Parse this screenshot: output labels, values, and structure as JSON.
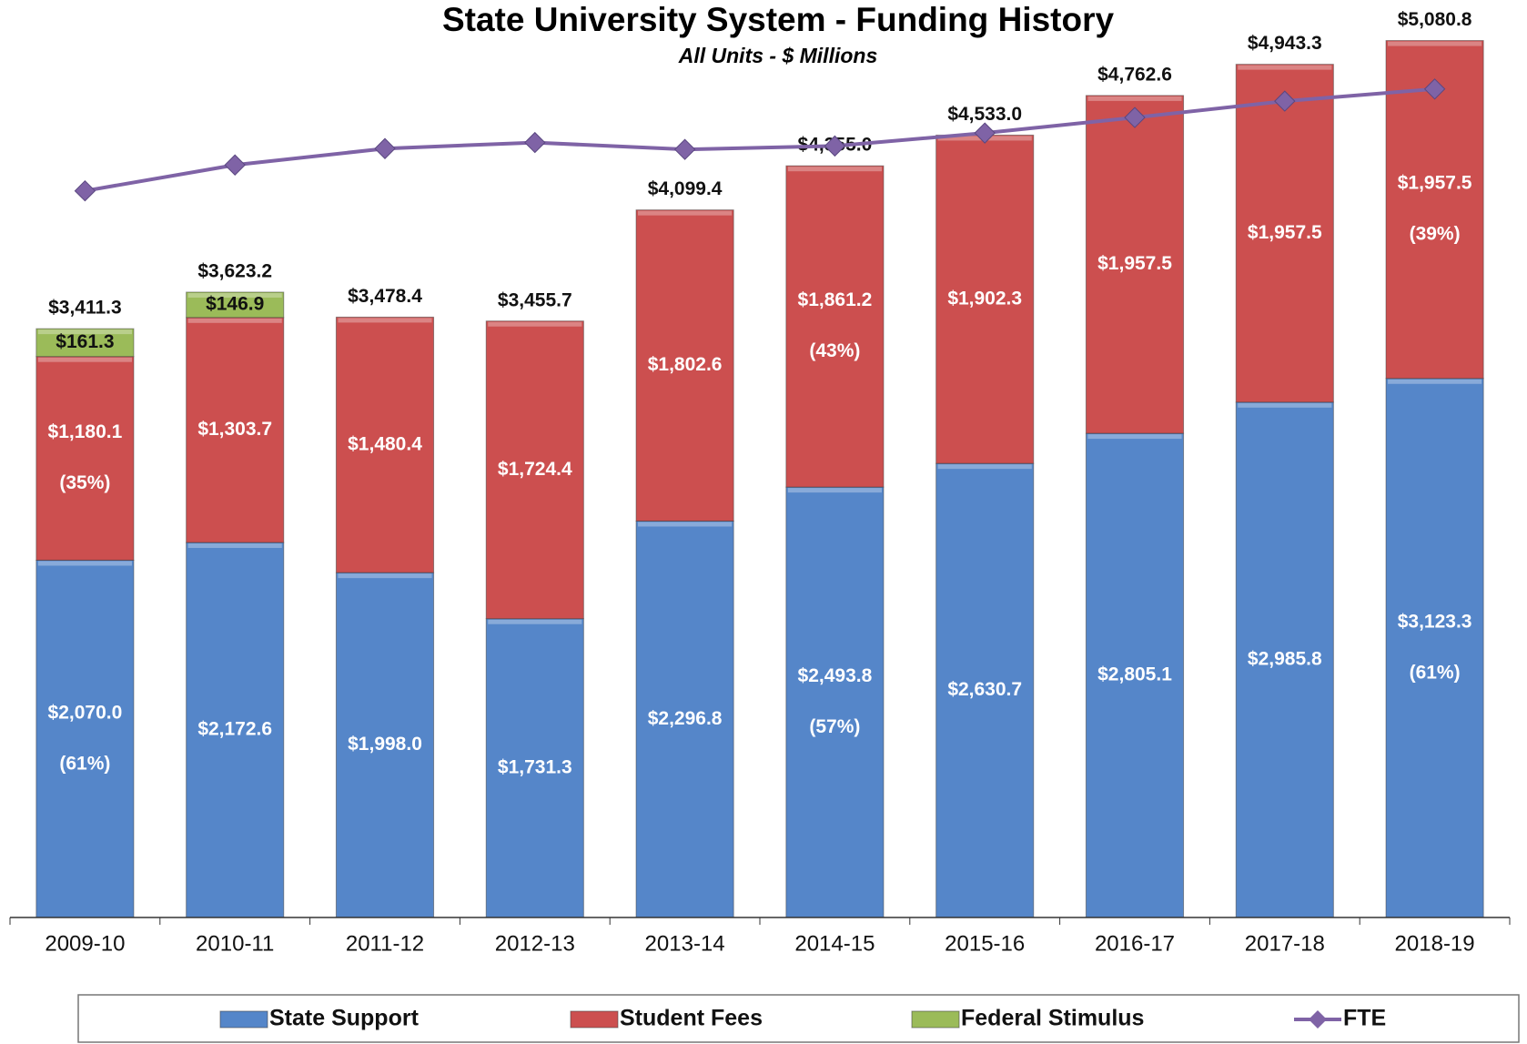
{
  "chart_data": {
    "type": "stacked_bar_line",
    "title": "State University System - Funding History",
    "subtitle": "All Units - $ Millions",
    "categories": [
      "2009-10",
      "2010-11",
      "2011-12",
      "2012-13",
      "2013-14",
      "2014-15",
      "2015-16",
      "2016-17",
      "2017-18",
      "2018-19"
    ],
    "ylim": [
      0,
      5300
    ],
    "series": [
      {
        "name": "State Support",
        "color": "#5586c9",
        "values": [
          2070.0,
          2172.6,
          1998.0,
          1731.3,
          2296.8,
          2493.8,
          2630.7,
          2805.1,
          2985.8,
          3123.3
        ],
        "value_labels": [
          "$2,070.0",
          "$2,172.6",
          "$1,998.0",
          "$1,731.3",
          "$2,296.8",
          "$2,493.8",
          "$2,630.7",
          "$2,805.1",
          "$2,985.8",
          "$3,123.3"
        ],
        "shares": [
          61,
          null,
          null,
          null,
          null,
          57,
          null,
          null,
          null,
          61
        ],
        "share_labels": [
          "(61%)",
          null,
          null,
          null,
          null,
          "(57%)",
          null,
          null,
          null,
          "(61%)"
        ]
      },
      {
        "name": "Student Fees",
        "color": "#cc4f4f",
        "values": [
          1180.1,
          1303.7,
          1480.4,
          1724.4,
          1802.6,
          1861.2,
          1902.3,
          1957.5,
          1957.5,
          1957.5
        ],
        "value_labels": [
          "$1,180.1",
          "$1,303.7",
          "$1,480.4",
          "$1,724.4",
          "$1,802.6",
          "$1,861.2",
          "$1,902.3",
          "$1,957.5",
          "$1,957.5",
          "$1,957.5"
        ],
        "shares": [
          35,
          null,
          null,
          null,
          null,
          43,
          null,
          null,
          null,
          39
        ],
        "share_labels": [
          "(35%)",
          null,
          null,
          null,
          null,
          "(43%)",
          null,
          null,
          null,
          "(39%)"
        ]
      },
      {
        "name": "Federal Stimulus",
        "color": "#9bbb59",
        "values": [
          161.3,
          146.9,
          null,
          null,
          null,
          null,
          null,
          null,
          null,
          null
        ],
        "value_labels": [
          "$161.3",
          "$146.9",
          null,
          null,
          null,
          null,
          null,
          null,
          null,
          null
        ]
      },
      {
        "name": "FTE",
        "color": "#7f63a6",
        "kind": "line",
        "values": [
          4210,
          4360,
          4455,
          4490,
          4450,
          4470,
          4545,
          4635,
          4730,
          4800
        ]
      }
    ],
    "totals": [
      3411.3,
      3623.2,
      3478.4,
      3455.7,
      4099.4,
      4355.0,
      4533.0,
      4762.6,
      4943.3,
      5080.8
    ],
    "total_labels": [
      "$3,411.3",
      "$3,623.2",
      "$3,478.4",
      "$3,455.7",
      "$4,099.4",
      "$4,355.0",
      "$4,533.0",
      "$4,762.6",
      "$4,943.3",
      "$5,080.8"
    ]
  }
}
